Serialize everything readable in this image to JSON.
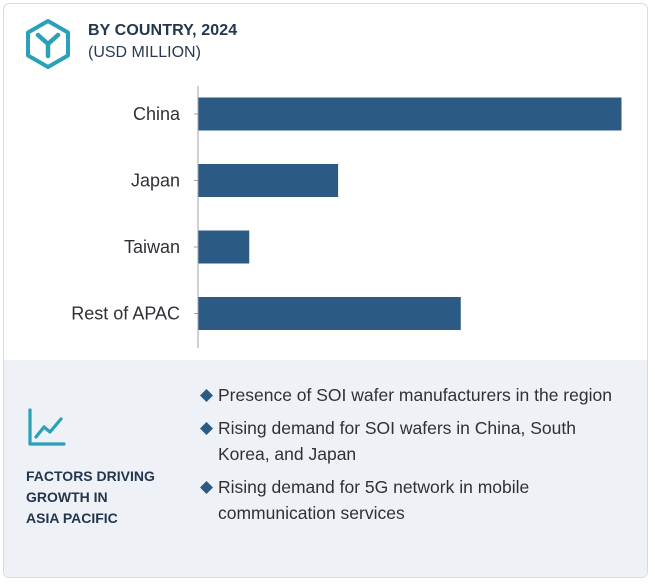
{
  "header": {
    "title": "BY COUNTRY, 2024",
    "subtitle": "(USD MILLION)"
  },
  "colors": {
    "bar": "#2b5a85",
    "accent": "#2aa1b8",
    "title_text": "#23364f"
  },
  "icons": {
    "logo": "hexagon-y-logo-icon",
    "factors": "line-chart-trend-icon",
    "bullet": "diamond-bullet-icon"
  },
  "chart_data": {
    "type": "bar",
    "orientation": "horizontal",
    "title": "BY COUNTRY, 2024",
    "subtitle": "(USD MILLION)",
    "categories": [
      "China",
      "Japan",
      "Taiwan",
      "Rest of APAC"
    ],
    "values": [
      100,
      33,
      12,
      62
    ],
    "xlim": [
      0,
      100
    ],
    "grid": false,
    "value_labels": false
  },
  "factors": {
    "title_lines": [
      "FACTORS DRIVING",
      "GROWTH IN",
      "ASIA PACIFIC"
    ],
    "items": [
      "Presence of SOI wafer manufacturers in the region",
      "Rising demand for SOI wafers in China, South Korea, and Japan",
      "Rising demand for 5G network in mobile communication services"
    ]
  }
}
